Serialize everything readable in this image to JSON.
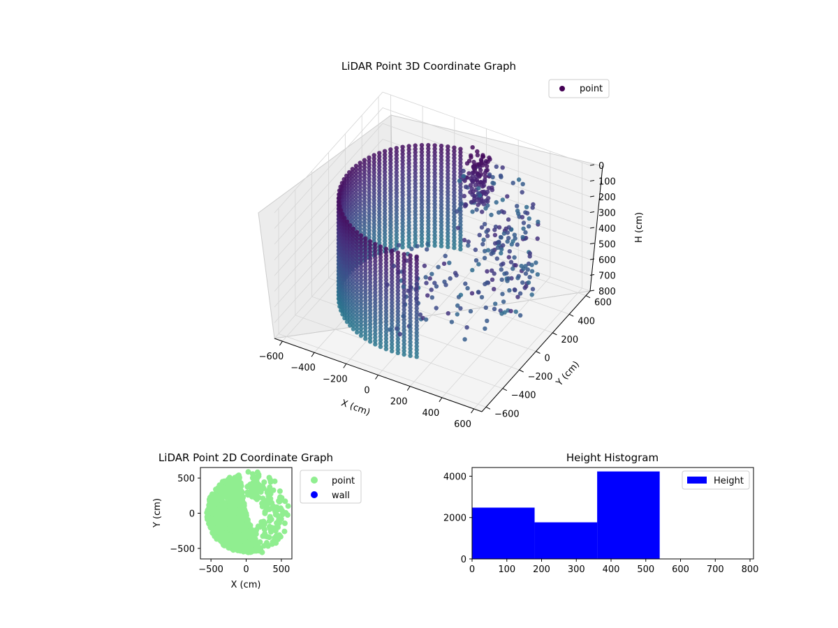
{
  "chart_data": [
    {
      "type": "scatter3d",
      "title": "LiDAR Point 3D Coordinate Graph",
      "xlabel": "X (cm)",
      "ylabel": "Y (cm)",
      "zlabel": "H (cm)",
      "xlim": [
        -650,
        650
      ],
      "ylim": [
        -650,
        650
      ],
      "zlim": [
        800,
        0
      ],
      "xticks": [
        -600,
        -400,
        -200,
        0,
        200,
        400,
        600
      ],
      "yticks": [
        -600,
        -400,
        -200,
        0,
        200,
        400,
        600
      ],
      "zticks": [
        0,
        100,
        200,
        300,
        400,
        500,
        600,
        700,
        800
      ],
      "legend": [
        {
          "label": "point",
          "color": "#440154"
        }
      ],
      "legend_position": "top-right",
      "colormap": "viridis",
      "grid": true
    },
    {
      "type": "scatter",
      "title": "LiDAR Point 2D Coordinate Graph",
      "xlabel": "X (cm)",
      "ylabel": "Y (cm)",
      "xlim": [
        -650,
        650
      ],
      "ylim": [
        -650,
        650
      ],
      "xticks": [
        -500,
        0,
        500
      ],
      "yticks": [
        -500,
        0,
        500
      ],
      "series": [
        {
          "name": "point",
          "color": "#90ee90"
        },
        {
          "name": "wall",
          "color": "#0000ff"
        }
      ],
      "legend_position": "outside-right"
    },
    {
      "type": "bar",
      "title": "Height Histogram",
      "bins": [
        [
          0,
          180
        ],
        [
          180,
          360
        ],
        [
          360,
          540
        ],
        [
          540,
          720
        ],
        [
          720,
          800
        ]
      ],
      "values": [
        2480,
        1770,
        4230,
        0,
        0
      ],
      "xlim": [
        0,
        810
      ],
      "ylim": [
        0,
        4420
      ],
      "xticks": [
        0,
        100,
        200,
        300,
        400,
        500,
        600,
        700,
        800
      ],
      "yticks": [
        0,
        2000,
        4000
      ],
      "series": [
        {
          "name": "Height",
          "color": "#0000ff"
        }
      ],
      "legend_position": "top-right"
    }
  ]
}
